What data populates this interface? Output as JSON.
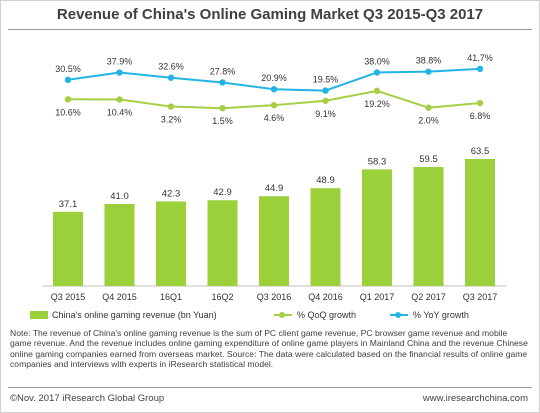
{
  "title": "Revenue of China's Online Gaming Market Q3 2015-Q3 2017",
  "chart_data": {
    "type": "bar",
    "categories": [
      "Q3 2015",
      "Q4 2015",
      "16Q1",
      "16Q2",
      "Q3 2016",
      "Q4 2016",
      "Q1 2017",
      "Q2 2017",
      "Q3 2017"
    ],
    "series": [
      {
        "name": "China's online gaming revenue (bn Yuan)",
        "type": "bar",
        "values": [
          37.1,
          41.0,
          42.3,
          42.9,
          44.9,
          48.9,
          58.3,
          59.5,
          63.5
        ],
        "labels": [
          "37.1",
          "41.0",
          "42.3",
          "42.9",
          "44.9",
          "48.9",
          "58.3",
          "59.5",
          "63.5"
        ],
        "color": "#9bd03b"
      },
      {
        "name": "% QoQ growth",
        "type": "line",
        "values": [
          10.6,
          10.4,
          3.2,
          1.5,
          4.6,
          9.1,
          19.2,
          2.0,
          6.8
        ],
        "labels": [
          "10.6%",
          "10.4%",
          "3.2%",
          "1.5%",
          "4.6%",
          "9.1%",
          "19.2%",
          "2.0%",
          "6.8%"
        ],
        "color": "#a5cf45"
      },
      {
        "name": "% YoY growth",
        "type": "line",
        "values": [
          30.5,
          37.9,
          32.6,
          27.8,
          20.9,
          19.5,
          38.0,
          38.8,
          41.7
        ],
        "labels": [
          "30.5%",
          "37.9%",
          "32.6%",
          "27.8%",
          "20.9%",
          "19.5%",
          "38.0%",
          "38.8%",
          "41.7%"
        ],
        "color": "#23b4e5"
      }
    ],
    "legend_position": "bottom",
    "grid": false
  },
  "note": "Note: The revenue of China's online gaming revenue is the sum of PC client game revenue, PC browser game revenue and mobile game revenue. And the revenue includes online gaming expenditure of online game players in Mainland China and the revenue Chinese online gaming companies earned from overseas market. Source: The data were calculated based on the financial results of online game companies and interviews with experts in iResearch statistical model.",
  "footer": {
    "copyright": "©Nov. 2017 iResearch Global Group",
    "site": "www.iresearchchina.com"
  }
}
